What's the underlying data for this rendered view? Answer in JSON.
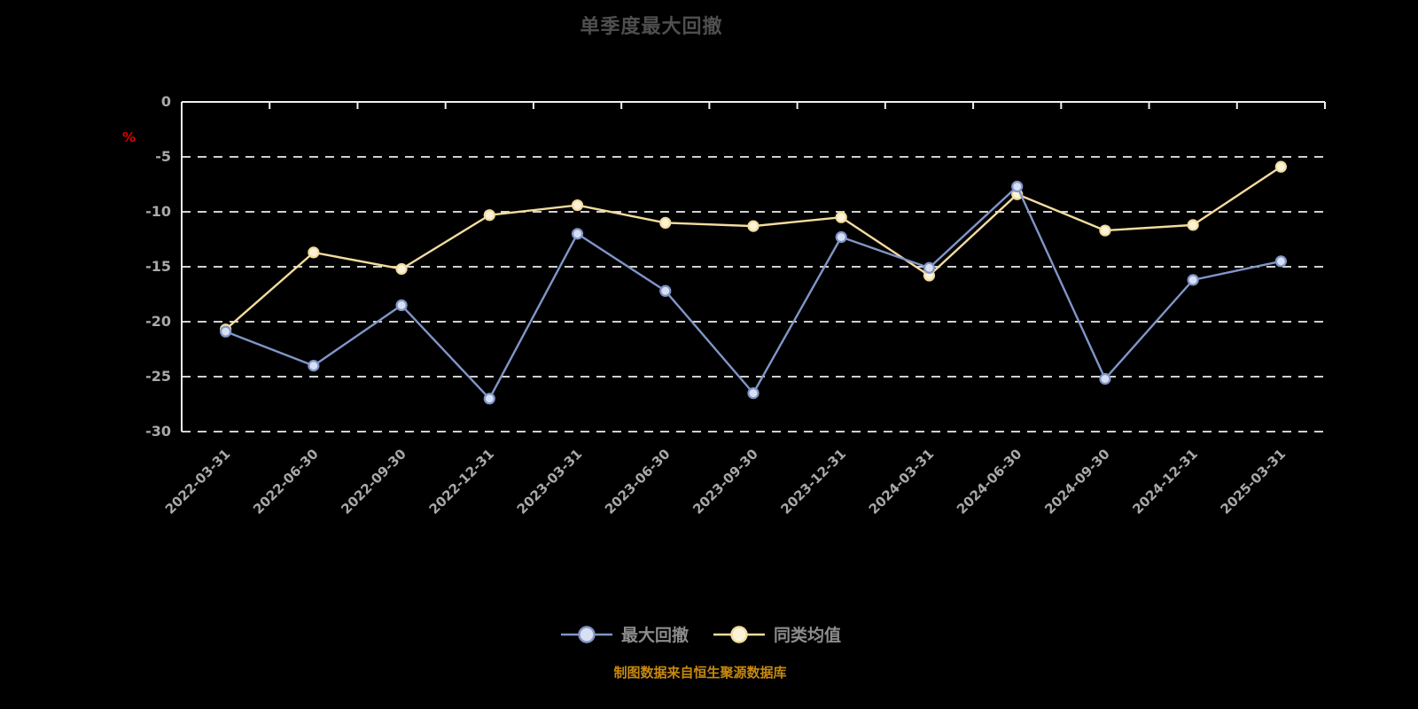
{
  "chart": {
    "title": "单季度最大回撤",
    "y_unit_label": "%",
    "footnote": "制图数据来自恒生聚源数据库"
  },
  "chart_data": {
    "type": "line",
    "title": "单季度最大回撤",
    "xlabel": "",
    "ylabel": "%",
    "ylim": [
      -30,
      0
    ],
    "yticks": [
      0,
      -5,
      -10,
      -15,
      -20,
      -25,
      -30
    ],
    "grid": "horizontal-dashed",
    "legend_position": "bottom",
    "categories": [
      "2022-03-31",
      "2022-06-30",
      "2022-09-30",
      "2022-12-31",
      "2023-03-31",
      "2023-06-30",
      "2023-09-30",
      "2023-12-31",
      "2024-03-31",
      "2024-06-30",
      "2024-09-30",
      "2024-12-31",
      "2025-03-31"
    ],
    "series": [
      {
        "name": "最大回撤",
        "color": "#8096C8",
        "marker_fill": "#D8DFF2",
        "values": [
          -20.9,
          -24.0,
          -18.5,
          -27.0,
          -12.0,
          -17.2,
          -26.5,
          -12.3,
          -15.1,
          -7.7,
          -25.2,
          -16.2,
          -14.5
        ]
      },
      {
        "name": "同类均值",
        "color": "#F3DC9E",
        "marker_fill": "#FBF3D9",
        "values": [
          -20.7,
          -13.7,
          -15.2,
          -10.3,
          -9.4,
          -11.0,
          -11.3,
          -10.5,
          -15.8,
          -8.4,
          -11.7,
          -11.2,
          -5.9
        ]
      }
    ],
    "colors": {
      "background": "#000000",
      "axis": "#F0F0F0",
      "gridline": "#EDEDED",
      "tick_label": "#A9A9A9",
      "title": "#4F4F4F",
      "unit_label": "#E00000",
      "legend_text": "#8C8C8C",
      "footnote": "#C7890E"
    }
  }
}
